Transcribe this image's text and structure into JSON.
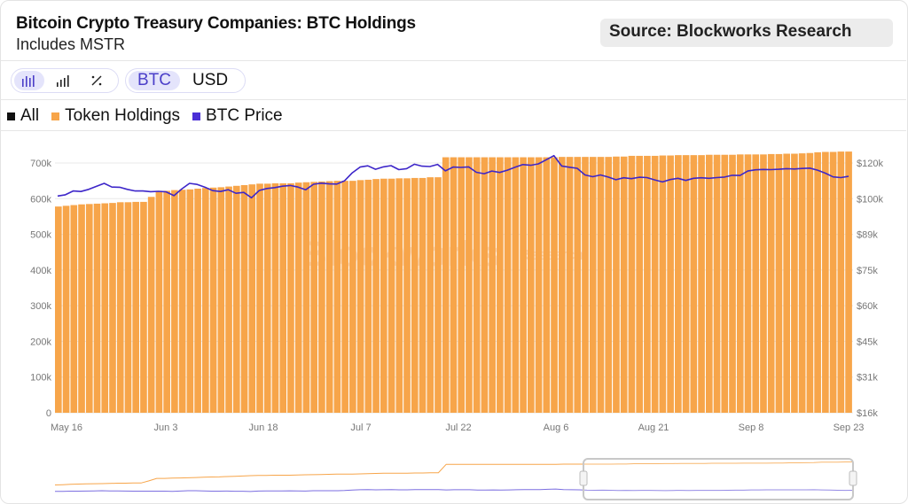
{
  "header": {
    "title": "Bitcoin Crypto Treasury Companies: BTC Holdings",
    "subtitle": "Includes MSTR",
    "source": "Source: Blockworks Research"
  },
  "toolbar": {
    "view_icons": [
      "bar-chart-icon",
      "bar-chart-small-icon",
      "percent-icon"
    ],
    "active_view": 0,
    "units": [
      "BTC",
      "USD"
    ],
    "active_unit": "BTC"
  },
  "legend": [
    {
      "label": "All",
      "color": "#111111"
    },
    {
      "label": "Token Holdings",
      "color": "#f7a54a"
    },
    {
      "label": "BTC Price",
      "color": "#4b2fd6"
    }
  ],
  "watermark": {
    "brand": "Blockworks",
    "sub": "Research"
  },
  "colors": {
    "bar": "#f7a54a",
    "line": "#3d26c9",
    "grid": "#e8e8e8"
  },
  "chart_data": {
    "type": "bar",
    "title": "Bitcoin Crypto Treasury Companies: BTC Holdings",
    "subtitle": "Includes MSTR",
    "x_ticks": [
      "May 16",
      "Jun 3",
      "Jun 18",
      "Jul 7",
      "Jul 22",
      "Aug 6",
      "Aug 21",
      "Sep 8",
      "Sep 23"
    ],
    "y_left_ticks": [
      "0",
      "100k",
      "200k",
      "300k",
      "400k",
      "500k",
      "600k",
      "700k"
    ],
    "y_right_ticks": [
      "$16k",
      "$31k",
      "$45k",
      "$60k",
      "$75k",
      "$89k",
      "$100k",
      "$120k"
    ],
    "ylim_left": [
      0,
      700000
    ],
    "series": [
      {
        "name": "Token Holdings",
        "axis": "left",
        "kind": "bar",
        "values": [
          578000,
          580000,
          582000,
          584000,
          585000,
          586000,
          587000,
          588000,
          590000,
          590000,
          591000,
          591000,
          605000,
          622000,
          622000,
          624000,
          625000,
          626000,
          628000,
          630000,
          631000,
          632000,
          634000,
          636000,
          638000,
          640000,
          642000,
          642000,
          643000,
          643000,
          643000,
          645000,
          646000,
          647000,
          648000,
          649000,
          650000,
          650000,
          650000,
          652000,
          653000,
          655000,
          656000,
          656000,
          657000,
          657000,
          658000,
          658000,
          660000,
          660000,
          716000,
          716000,
          716000,
          716000,
          716000,
          716000,
          716000,
          716000,
          716000,
          716000,
          716000,
          716000,
          716000,
          716000,
          716000,
          717000,
          717000,
          717000,
          717000,
          717000,
          717000,
          717000,
          718000,
          718000,
          720000,
          720000,
          720000,
          720000,
          721000,
          721000,
          722000,
          722000,
          722000,
          722000,
          723000,
          723000,
          723000,
          723000,
          724000,
          724000,
          724000,
          724000,
          725000,
          725000,
          726000,
          726000,
          727000,
          728000,
          730000,
          731000,
          731000,
          732000,
          732000
        ]
      },
      {
        "name": "BTC Price",
        "axis": "right",
        "kind": "line",
        "values": [
          101500,
          102200,
          104300,
          104000,
          105200,
          106900,
          108600,
          106500,
          106400,
          105200,
          104300,
          104300,
          103900,
          104100,
          103800,
          101700,
          105400,
          108600,
          108000,
          106400,
          104500,
          104000,
          105000,
          103000,
          103500,
          100500,
          104600,
          105700,
          106200,
          107000,
          107400,
          106500,
          105000,
          108100,
          108700,
          108300,
          108200,
          110000,
          114500,
          117700,
          118400,
          116500,
          117800,
          118500,
          116300,
          116800,
          119300,
          118200,
          118000,
          119200,
          115600,
          117700,
          117500,
          117800,
          114800,
          114000,
          115500,
          114700,
          116000,
          117600,
          119100,
          118700,
          119500,
          121800,
          124100,
          118300,
          117600,
          117000,
          113300,
          112300,
          113300,
          112100,
          110600,
          111700,
          111200,
          112000,
          111800,
          110500,
          109400,
          110700,
          111400,
          110200,
          111400,
          111700,
          111400,
          111800,
          112100,
          113100,
          113000,
          115500,
          116200,
          116400,
          116300,
          116500,
          116800,
          116600,
          116900,
          117100,
          116000,
          114300,
          112200,
          111800,
          112500
        ]
      }
    ]
  }
}
